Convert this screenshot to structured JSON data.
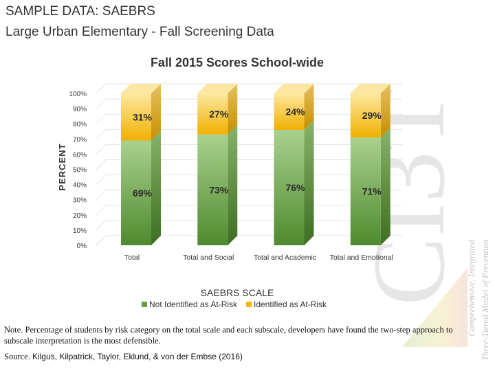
{
  "header": {
    "line1": "SAMPLE DATA: SAEBRS",
    "line2": "Large Urban Elementary - Fall Screening Data"
  },
  "chart_data": {
    "type": "bar",
    "stacked": true,
    "title": "Fall 2015 Scores School-wide",
    "xlabel": "SAEBRS SCALE",
    "ylabel": "PERCENT",
    "ylim": [
      0,
      100
    ],
    "yticks": [
      "0%",
      "10%",
      "20%",
      "30%",
      "40%",
      "50%",
      "60%",
      "70%",
      "80%",
      "90%",
      "100%"
    ],
    "categories": [
      "Total",
      "Total and Social",
      "Total and Academic",
      "Total and Emotional"
    ],
    "series": [
      {
        "name": "Not Identified as At-Risk",
        "values": [
          69,
          73,
          76,
          71
        ],
        "labels": [
          "69%",
          "73%",
          "76%",
          "71%"
        ],
        "color": "#6aa042"
      },
      {
        "name": "Identified as At-Risk",
        "values": [
          31,
          27,
          24,
          29
        ],
        "labels": [
          "31%",
          "27%",
          "24%",
          "29%"
        ],
        "color": "#f5b800"
      }
    ],
    "legend_position": "bottom",
    "grid": true
  },
  "note": "Note. Percentage of students by risk category on the total scale and each subscale, developers have found the two-step approach to subscale interpretation is the most defensible.",
  "source": {
    "label": "Source. ",
    "authors": "Kilgus, Kilpatrick, Taylor, Eklund, & von der Embse (2016)"
  },
  "watermark": {
    "logo": "CI3T",
    "line1": "Comprehensive, Integrated",
    "line2": "Three-Tiered Model of Prevention"
  }
}
